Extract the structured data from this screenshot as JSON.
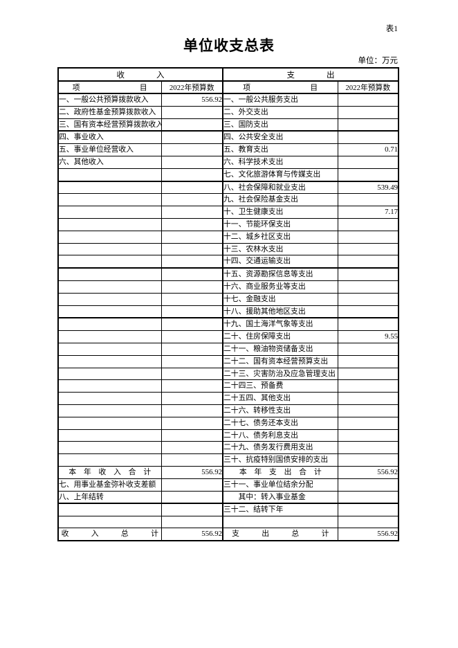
{
  "page": {
    "corner_label": "表1",
    "title": "单位收支总表",
    "unit_label": "单位：万元"
  },
  "table": {
    "headers": {
      "income_group": "收　　　　入",
      "expense_group": "支　　　　出",
      "income_item": "项　　　　　　　　目",
      "income_amount": "2022年预算数",
      "expense_item": "项　　　　　　　　目",
      "expense_amount": "2022年预算数"
    },
    "rows": [
      {
        "income": "一、一般公共预算拨款收入",
        "income_amount": "556.92",
        "expense": "一、一般公共服务支出",
        "expense_amount": ""
      },
      {
        "income": "二、政府性基金预算拨款收入",
        "income_amount": "",
        "expense": "二、外交支出",
        "expense_amount": ""
      },
      {
        "income": "三、国有资本经营预算拨款收入",
        "income_amount": "",
        "expense": "三、国防支出",
        "expense_amount": "",
        "thick_below": true
      },
      {
        "income": "四、事业收入",
        "income_amount": "",
        "expense": "四、公共安全支出",
        "expense_amount": ""
      },
      {
        "income": "五、事业单位经营收入",
        "income_amount": "",
        "expense": "五、教育支出",
        "expense_amount": "0.71"
      },
      {
        "income": "六、其他收入",
        "income_amount": "",
        "expense": "六、科学技术支出",
        "expense_amount": ""
      },
      {
        "income": "",
        "income_amount": "",
        "expense": "七、文化旅游体育与传媒支出",
        "expense_amount": "",
        "thick_below": true
      },
      {
        "income": "",
        "income_amount": "",
        "expense": "八、社会保障和就业支出",
        "expense_amount": "539.49"
      },
      {
        "income": "",
        "income_amount": "",
        "expense": "九、社会保险基金支出",
        "expense_amount": ""
      },
      {
        "income": "",
        "income_amount": "",
        "expense": "十、卫生健康支出",
        "expense_amount": "7.17"
      },
      {
        "income": "",
        "income_amount": "",
        "expense": "十一、节能环保支出",
        "expense_amount": ""
      },
      {
        "income": "",
        "income_amount": "",
        "expense": "十二、城乡社区支出",
        "expense_amount": ""
      },
      {
        "income": "",
        "income_amount": "",
        "expense": "十三、农林水支出",
        "expense_amount": ""
      },
      {
        "income": "",
        "income_amount": "",
        "expense": "十四、交通运输支出",
        "expense_amount": "",
        "thick_below": true
      },
      {
        "income": "",
        "income_amount": "",
        "expense": "十五、资源勘探信息等支出",
        "expense_amount": ""
      },
      {
        "income": "",
        "income_amount": "",
        "expense": "十六、商业服务业等支出",
        "expense_amount": ""
      },
      {
        "income": "",
        "income_amount": "",
        "expense": "十七、金融支出",
        "expense_amount": ""
      },
      {
        "income": "",
        "income_amount": "",
        "expense": "十八、援助其他地区支出",
        "expense_amount": "",
        "thick_below": true
      },
      {
        "income": "",
        "income_amount": "",
        "expense": "十九、国土海洋气象等支出",
        "expense_amount": ""
      },
      {
        "income": "",
        "income_amount": "",
        "expense": "二十、住房保障支出",
        "expense_amount": "9.55"
      },
      {
        "income": "",
        "income_amount": "",
        "expense": "二十一、粮油物资储备支出",
        "expense_amount": ""
      },
      {
        "income": "",
        "income_amount": "",
        "expense": "二十二、国有资本经营预算支出",
        "expense_amount": ""
      },
      {
        "income": "",
        "income_amount": "",
        "expense": "二十三、灾害防治及应急管理支出",
        "expense_amount": ""
      },
      {
        "income": "",
        "income_amount": "",
        "expense": "二十四三、预备费",
        "expense_amount": ""
      },
      {
        "income": "",
        "income_amount": "",
        "expense": "二十五四、其他支出",
        "expense_amount": ""
      },
      {
        "income": "",
        "income_amount": "",
        "expense": "二十六、转移性支出",
        "expense_amount": ""
      },
      {
        "income": "",
        "income_amount": "",
        "expense": "二十七、债务还本支出",
        "expense_amount": ""
      },
      {
        "income": "",
        "income_amount": "",
        "expense": "二十八、债务利息支出",
        "expense_amount": ""
      },
      {
        "income": "",
        "income_amount": "",
        "expense": "二十九、债务发行费用支出",
        "expense_amount": ""
      },
      {
        "income": "",
        "income_amount": "",
        "expense": "三十、抗疫特别国债安排的支出",
        "expense_amount": ""
      },
      {
        "income": "本　年　收　入　合　计",
        "income_amount": "556.92",
        "expense": "本　年　支　出　合　计",
        "expense_amount": "556.92",
        "income_center": true,
        "expense_center": true
      },
      {
        "income": "七、用事业基金弥补收支差额",
        "income_amount": "",
        "expense": "三十一、事业单位结余分配",
        "expense_amount": ""
      },
      {
        "income": "八、上年结转",
        "income_amount": "",
        "expense": "　　其中：转入事业基金",
        "expense_amount": "",
        "thick_below": true
      },
      {
        "income": "",
        "income_amount": "",
        "expense": "三十二、结转下年",
        "expense_amount": ""
      },
      {
        "income": "",
        "income_amount": "",
        "expense": "",
        "expense_amount": ""
      },
      {
        "income": "收　　　入　　　总　　　计",
        "income_amount": "556.92",
        "expense": "支　　　出　　　总　　　计",
        "expense_amount": "556.92",
        "income_center": true,
        "expense_center": true
      }
    ]
  }
}
